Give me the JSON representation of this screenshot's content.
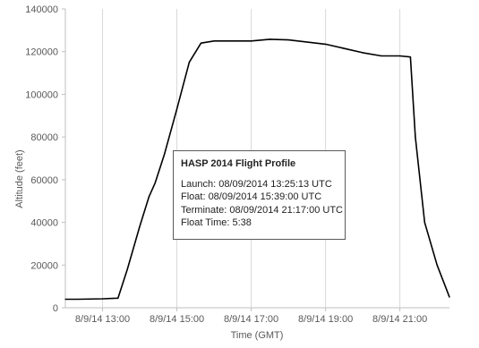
{
  "chart_data": {
    "type": "line",
    "xlabel": "Time (GMT)",
    "ylabel": "Altitude (feet)",
    "ylim": [
      0,
      140000
    ],
    "yticks": [
      0,
      20000,
      40000,
      60000,
      80000,
      100000,
      120000,
      140000
    ],
    "ytick_labels": [
      "0",
      "20000",
      "40000",
      "60000",
      "80000",
      "100000",
      "120000",
      "140000"
    ],
    "xlim": [
      "8/9/14 12:00",
      "8/9/14 22:20"
    ],
    "xticks": [
      "8/9/14 13:00",
      "8/9/14 15:00",
      "8/9/14 17:00",
      "8/9/14 19:00",
      "8/9/14 21:00"
    ],
    "xtick_labels": [
      "8/9/14 13:00",
      "8/9/14 15:00",
      "8/9/14 17:00",
      "8/9/14 19:00",
      "8/9/14 21:00"
    ],
    "grid": "vertical",
    "series": [
      {
        "color": "#000000",
        "points": [
          [
            "8/9/14 12:00",
            4000
          ],
          [
            "8/9/14 12:20",
            4000
          ],
          [
            "8/9/14 13:00",
            4200
          ],
          [
            "8/9/14 13:25",
            4500
          ],
          [
            "8/9/14 13:40",
            18000
          ],
          [
            "8/9/14 14:00",
            38000
          ],
          [
            "8/9/14 14:15",
            52000
          ],
          [
            "8/9/14 14:25",
            58500
          ],
          [
            "8/9/14 14:40",
            72000
          ],
          [
            "8/9/14 15:00",
            93000
          ],
          [
            "8/9/14 15:20",
            115000
          ],
          [
            "8/9/14 15:39",
            124000
          ],
          [
            "8/9/14 16:00",
            125000
          ],
          [
            "8/9/14 17:00",
            125000
          ],
          [
            "8/9/14 17:30",
            125800
          ],
          [
            "8/9/14 18:00",
            125500
          ],
          [
            "8/9/14 19:00",
            123500
          ],
          [
            "8/9/14 20:00",
            119500
          ],
          [
            "8/9/14 20:30",
            118000
          ],
          [
            "8/9/14 21:00",
            118000
          ],
          [
            "8/9/14 21:17",
            117500
          ],
          [
            "8/9/14 21:25",
            80000
          ],
          [
            "8/9/14 21:40",
            40000
          ],
          [
            "8/9/14 22:00",
            20000
          ],
          [
            "8/9/14 22:20",
            5000
          ]
        ]
      }
    ]
  },
  "info_box": {
    "title": "HASP 2014 Flight Profile",
    "launch": "Launch: 08/09/2014 13:25:13 UTC",
    "float": "Float: 08/09/2014 15:39:00 UTC",
    "terminate": "Terminate:  08/09/2014 21:17:00 UTC",
    "float_time": "Float Time: 5:38"
  }
}
